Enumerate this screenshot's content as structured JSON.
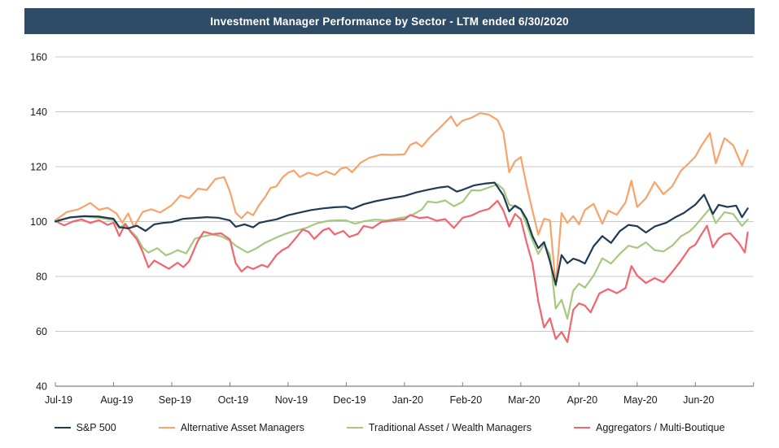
{
  "header": {
    "title": "Investment Manager Performance by Sector - LTM ended 6/30/2020",
    "bg_color": "#2E4C66",
    "text_color": "#FFFFFF"
  },
  "chart_data": {
    "type": "line",
    "title": "Investment Manager Performance by Sector - LTM ended 6/30/2020",
    "xlabel": "",
    "ylabel": "",
    "x_axis": {
      "tick_labels": [
        "Jul-19",
        "Aug-19",
        "Sep-19",
        "Oct-19",
        "Nov-19",
        "Dec-19",
        "Jan-20",
        "Feb-20",
        "Mar-20",
        "Apr-20",
        "May-20",
        "Jun-20"
      ],
      "unit": "months_since_jul_2019",
      "range": [
        0,
        12
      ]
    },
    "y_axis": {
      "ticks": [
        40,
        60,
        80,
        100,
        120,
        140,
        160
      ],
      "range": [
        40,
        160
      ]
    },
    "grid": "horizontal",
    "grid_color": "#C8C8C8",
    "axis_color": "#808080",
    "label_color": "#1a1a1a",
    "legend_position": "bottom",
    "index_base": 100,
    "series": [
      {
        "name": "Alternative Asset Managers",
        "color": "#F9A36A",
        "x": [
          0,
          0.2,
          0.4,
          0.6,
          0.75,
          0.9,
          1.05,
          1.15,
          1.25,
          1.35,
          1.5,
          1.65,
          1.8,
          2.0,
          2.15,
          2.3,
          2.45,
          2.6,
          2.75,
          2.9,
          3.0,
          3.1,
          3.2,
          3.3,
          3.4,
          3.5,
          3.6,
          3.7,
          3.8,
          3.9,
          4.0,
          4.1,
          4.2,
          4.35,
          4.5,
          4.65,
          4.8,
          4.9,
          5.0,
          5.1,
          5.25,
          5.4,
          5.6,
          5.8,
          6.0,
          6.1,
          6.2,
          6.3,
          6.45,
          6.6,
          6.8,
          6.9,
          7.0,
          7.15,
          7.3,
          7.45,
          7.6,
          7.7,
          7.8,
          7.9,
          8.0,
          8.1,
          8.2,
          8.3,
          8.4,
          8.5,
          8.6,
          8.7,
          8.8,
          8.9,
          9.0,
          9.1,
          9.25,
          9.4,
          9.5,
          9.65,
          9.8,
          9.9,
          10.0,
          10.15,
          10.3,
          10.45,
          10.6,
          10.75,
          10.9,
          11.0,
          11.1,
          11.25,
          11.35,
          11.5,
          11.65,
          11.8,
          11.9
        ],
        "y": [
          100.5,
          103.5,
          104.5,
          106.8,
          104.3,
          105,
          103,
          99.6,
          103,
          98.1,
          103.5,
          104.5,
          103.3,
          106,
          109.5,
          108.5,
          112,
          111.5,
          115.5,
          116.2,
          111,
          103.2,
          101.2,
          103.5,
          102.3,
          106,
          108.8,
          112.3,
          112.8,
          116,
          117.8,
          118.6,
          116.2,
          117.8,
          116.8,
          118.3,
          117,
          119.2,
          119.8,
          118,
          121.5,
          123.3,
          124.4,
          124.3,
          124.5,
          127.9,
          128.9,
          127.3,
          131,
          134,
          138.3,
          134.8,
          136.8,
          137.8,
          139.5,
          139,
          137,
          132.5,
          118,
          122,
          123.5,
          113,
          104,
          95.2,
          101,
          100.5,
          76.5,
          103.1,
          99.5,
          102,
          99,
          104.2,
          106.5,
          99.2,
          104,
          102.5,
          107,
          114.9,
          105.3,
          108.5,
          114.4,
          110,
          112.8,
          118.5,
          121.5,
          123.7,
          127.5,
          132.3,
          121.2,
          130.4,
          127.8,
          120.4,
          126
        ]
      },
      {
        "name": "Traditional Asset / Wealth Managers",
        "color": "#A6C87F",
        "x": [
          0,
          0.25,
          0.5,
          0.75,
          1.0,
          1.1,
          1.2,
          1.3,
          1.4,
          1.5,
          1.6,
          1.75,
          1.9,
          2.0,
          2.1,
          2.25,
          2.4,
          2.55,
          2.7,
          2.85,
          3.0,
          3.1,
          3.3,
          3.45,
          3.6,
          3.8,
          3.95,
          4.1,
          4.3,
          4.5,
          4.7,
          4.85,
          5.0,
          5.15,
          5.3,
          5.5,
          5.7,
          5.9,
          6.0,
          6.15,
          6.3,
          6.4,
          6.55,
          6.7,
          6.85,
          7.0,
          7.15,
          7.3,
          7.45,
          7.6,
          7.7,
          7.8,
          7.9,
          8.0,
          8.1,
          8.2,
          8.3,
          8.4,
          8.5,
          8.6,
          8.7,
          8.8,
          8.9,
          9.0,
          9.1,
          9.25,
          9.4,
          9.55,
          9.7,
          9.85,
          10.0,
          10.15,
          10.3,
          10.45,
          10.6,
          10.75,
          10.9,
          11.0,
          11.1,
          11.25,
          11.35,
          11.5,
          11.65,
          11.8,
          11.9
        ],
        "y": [
          100.3,
          101.5,
          101.8,
          101.4,
          100.5,
          97.5,
          99.3,
          96.5,
          94.3,
          90.5,
          88.7,
          90.3,
          87.7,
          88.5,
          89.6,
          88.4,
          93.8,
          94.6,
          95.3,
          94.6,
          93,
          91.2,
          88.7,
          90.2,
          92.2,
          94.2,
          95.5,
          96.5,
          97.6,
          99.4,
          100.3,
          100.5,
          100.4,
          99.2,
          100.1,
          100.7,
          100.4,
          101.2,
          101.5,
          102.6,
          104.4,
          107.3,
          106.9,
          107.7,
          105.6,
          107.2,
          111.4,
          111.3,
          112.4,
          113.6,
          111.8,
          106.2,
          105.4,
          104.4,
          98.9,
          93.2,
          88.2,
          91.8,
          87.9,
          68.3,
          71.5,
          64.6,
          74.8,
          77.4,
          75.9,
          80.3,
          86.6,
          84.7,
          88.2,
          91.2,
          90.4,
          92.4,
          89.6,
          89.1,
          91.2,
          94.6,
          96.4,
          98.5,
          101,
          104.8,
          99.4,
          103.4,
          102.8,
          98.4,
          100.7
        ]
      },
      {
        "name": "Aggregators / Multi-Boutique",
        "color": "#F2646E",
        "x": [
          0,
          0.15,
          0.3,
          0.45,
          0.6,
          0.75,
          0.9,
          1.0,
          1.1,
          1.2,
          1.3,
          1.4,
          1.5,
          1.6,
          1.7,
          1.8,
          1.95,
          2.1,
          2.2,
          2.3,
          2.45,
          2.55,
          2.7,
          2.85,
          3.0,
          3.1,
          3.2,
          3.3,
          3.4,
          3.55,
          3.65,
          3.8,
          3.9,
          4.0,
          4.1,
          4.25,
          4.35,
          4.45,
          4.6,
          4.7,
          4.8,
          4.95,
          5.05,
          5.2,
          5.3,
          5.45,
          5.6,
          5.8,
          6.0,
          6.1,
          6.25,
          6.4,
          6.55,
          6.7,
          6.85,
          7.0,
          7.15,
          7.3,
          7.45,
          7.6,
          7.7,
          7.8,
          7.9,
          8.0,
          8.1,
          8.2,
          8.3,
          8.4,
          8.5,
          8.6,
          8.7,
          8.8,
          8.9,
          9.0,
          9.1,
          9.2,
          9.35,
          9.5,
          9.65,
          9.8,
          9.9,
          10.0,
          10.15,
          10.3,
          10.45,
          10.6,
          10.75,
          10.9,
          11.0,
          11.1,
          11.2,
          11.3,
          11.4,
          11.5,
          11.6,
          11.75,
          11.85,
          11.9
        ],
        "y": [
          100.2,
          98.6,
          100,
          100.8,
          99.5,
          100.5,
          98.8,
          99.6,
          94.7,
          99.1,
          96.1,
          93.5,
          89,
          83.3,
          85.8,
          84.6,
          82.8,
          85,
          83.4,
          85.6,
          93,
          96.3,
          95.4,
          95.7,
          93.5,
          84.8,
          81.8,
          83.6,
          82.7,
          84.2,
          83.4,
          87.8,
          89.6,
          90.7,
          93.2,
          97.1,
          96.3,
          93.7,
          96.8,
          97.6,
          95.3,
          96.6,
          94.4,
          95.5,
          98.4,
          97.7,
          99.8,
          100.4,
          100.8,
          102.4,
          101.3,
          101.6,
          100.3,
          100.9,
          97.7,
          101.4,
          102.2,
          103.7,
          104.6,
          107.6,
          104,
          98.2,
          102.8,
          100.9,
          92.3,
          84.8,
          70.9,
          61.4,
          64.8,
          57.2,
          59.8,
          56.1,
          67.8,
          70.2,
          69.4,
          66.9,
          73.8,
          75.4,
          73.9,
          75.8,
          83.8,
          80.3,
          77.6,
          79.4,
          77.9,
          81.6,
          85.7,
          90.3,
          91.6,
          95.2,
          98.5,
          90.6,
          93.8,
          95.4,
          95.7,
          92.1,
          88.7,
          96.1
        ]
      },
      {
        "name": "S&P 500",
        "color": "#1F3B54",
        "x": [
          0,
          0.25,
          0.5,
          0.75,
          1.0,
          1.1,
          1.25,
          1.4,
          1.55,
          1.7,
          1.85,
          2.0,
          2.2,
          2.4,
          2.6,
          2.8,
          3.0,
          3.1,
          3.25,
          3.4,
          3.5,
          3.65,
          3.8,
          4.0,
          4.2,
          4.4,
          4.6,
          4.8,
          5.0,
          5.1,
          5.3,
          5.5,
          5.75,
          6.0,
          6.2,
          6.4,
          6.6,
          6.75,
          6.9,
          7.0,
          7.2,
          7.4,
          7.55,
          7.7,
          7.8,
          7.9,
          8.0,
          8.1,
          8.2,
          8.3,
          8.4,
          8.5,
          8.6,
          8.7,
          8.8,
          8.9,
          9.0,
          9.1,
          9.25,
          9.4,
          9.55,
          9.7,
          9.85,
          10.0,
          10.15,
          10.3,
          10.5,
          10.65,
          10.8,
          11.0,
          11.15,
          11.3,
          11.4,
          11.55,
          11.7,
          11.8,
          11.9
        ],
        "y": [
          100,
          101.5,
          102,
          101.8,
          101,
          98,
          97.5,
          98.5,
          96.6,
          99,
          99.5,
          99.8,
          101,
          101.3,
          101.6,
          101.4,
          100.4,
          98.1,
          99,
          97.9,
          99.5,
          100.2,
          100.8,
          102.3,
          103.3,
          104.2,
          104.8,
          105.2,
          105.4,
          104.6,
          106.3,
          107.4,
          108.4,
          109.3,
          110.6,
          111.6,
          112.4,
          112.8,
          110.9,
          111.6,
          113.2,
          113.9,
          114.2,
          109.5,
          103.7,
          105.8,
          104.5,
          100.9,
          94.7,
          90.3,
          92.5,
          85.5,
          77,
          87.8,
          84.8,
          86.5,
          85.8,
          84.7,
          91,
          94.7,
          92.2,
          96.5,
          98.8,
          98.3,
          96,
          98.2,
          99.6,
          101.5,
          103.1,
          106.2,
          109.8,
          102.8,
          106.1,
          105.3,
          105.8,
          101.6,
          104.8
        ]
      }
    ],
    "legend_order": [
      "S&P 500",
      "Alternative Asset Managers",
      "Traditional Asset / Wealth Managers",
      "Aggregators / Multi-Boutique"
    ]
  }
}
